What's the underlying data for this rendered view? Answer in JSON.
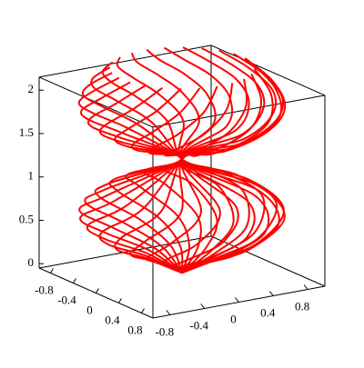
{
  "chart_data": {
    "type": "surface3d",
    "color": "#ff0000",
    "curves": 24,
    "surface": {
      "z": [
        0,
        0.2,
        0.4,
        0.68,
        0.95,
        1.31,
        1.55,
        1.75,
        1.94,
        2.15,
        2.36
      ],
      "r": [
        0,
        0.35,
        0.75,
        1.0,
        0.75,
        0,
        0.6,
        0.9,
        1.0,
        0.9,
        0.7
      ]
    },
    "xlim": [
      -1,
      1
    ],
    "ylim": [
      -1,
      1
    ],
    "zlim": [
      -0.05,
      2.15
    ],
    "xticks": [
      -0.8,
      -0.4,
      0,
      0.4,
      0.8
    ],
    "yticks": [
      -0.8,
      -0.4,
      0,
      0.4,
      0.8
    ],
    "zticks": [
      0,
      0.5,
      1,
      1.5,
      2
    ]
  }
}
